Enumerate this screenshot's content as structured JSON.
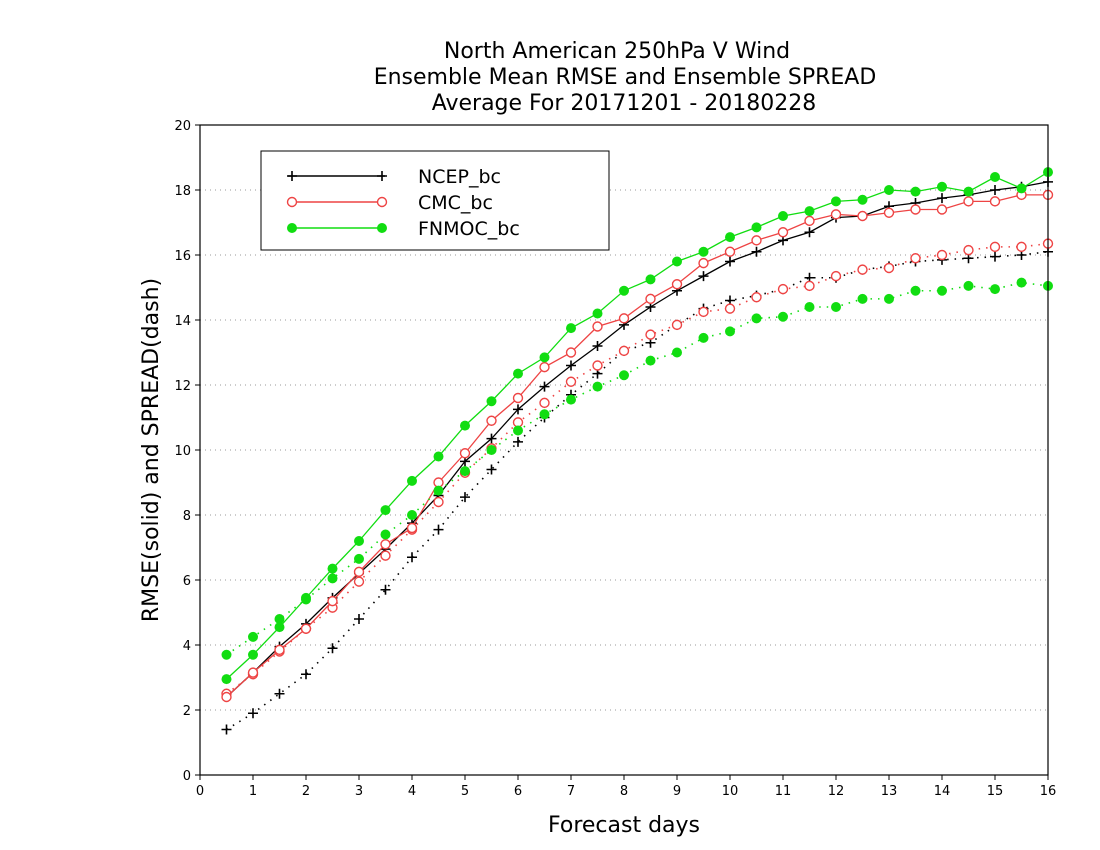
{
  "chart_data": {
    "type": "line",
    "title_lines": [
      "North American 250hPa V Wind",
      "Ensemble Mean RMSE and Ensemble SPREAD",
      "Average For 20171201 - 20180228"
    ],
    "xlabel": "Forecast days",
    "ylabel": "RMSE(solid) and SPREAD(dash)",
    "xlim": [
      0,
      16
    ],
    "ylim": [
      0,
      20
    ],
    "xticks": [
      0,
      1,
      2,
      3,
      4,
      5,
      6,
      7,
      8,
      9,
      10,
      11,
      12,
      13,
      14,
      15,
      16
    ],
    "yticks": [
      0,
      2,
      4,
      6,
      8,
      10,
      12,
      14,
      16,
      18,
      20
    ],
    "grid": "horizontal-dotted",
    "legend_position": "top-left",
    "x": [
      0.5,
      1,
      1.5,
      2,
      2.5,
      3,
      3.5,
      4,
      4.5,
      5,
      5.5,
      6,
      6.5,
      7,
      7.5,
      8,
      8.5,
      9,
      9.5,
      10,
      10.5,
      11,
      11.5,
      12,
      12.5,
      13,
      13.5,
      14,
      14.5,
      15,
      15.5,
      16
    ],
    "series": [
      {
        "name": "NCEP_bc",
        "color": "#000000",
        "marker": "plus",
        "rmse": [
          2.4,
          3.15,
          3.95,
          4.65,
          5.45,
          6.2,
          6.95,
          7.75,
          8.6,
          9.65,
          10.35,
          11.25,
          11.95,
          12.6,
          13.2,
          13.85,
          14.4,
          14.9,
          15.35,
          15.8,
          16.1,
          16.45,
          16.7,
          17.15,
          17.2,
          17.5,
          17.6,
          17.75,
          17.85,
          18.0,
          18.1,
          18.25
        ],
        "spread": [
          1.4,
          1.9,
          2.5,
          3.1,
          3.9,
          4.8,
          5.7,
          6.7,
          7.55,
          8.55,
          9.4,
          10.25,
          11.0,
          11.7,
          12.35,
          13.05,
          13.3,
          13.85,
          14.35,
          14.6,
          14.75,
          14.95,
          15.3,
          15.3,
          15.55,
          15.65,
          15.8,
          15.85,
          15.9,
          15.95,
          16.0,
          16.1
        ]
      },
      {
        "name": "CMC_bc",
        "color": "#ee4444",
        "marker": "open-circle",
        "rmse": [
          2.4,
          3.15,
          3.85,
          4.5,
          5.35,
          6.25,
          7.1,
          7.6,
          9.0,
          9.9,
          10.9,
          11.6,
          12.55,
          13.0,
          13.8,
          14.05,
          14.65,
          15.1,
          15.75,
          16.1,
          16.45,
          16.7,
          17.05,
          17.25,
          17.2,
          17.3,
          17.4,
          17.4,
          17.65,
          17.65,
          17.85,
          17.85
        ],
        "spread": [
          2.5,
          3.1,
          3.8,
          4.5,
          5.15,
          5.95,
          6.75,
          7.55,
          8.4,
          9.3,
          10.05,
          10.85,
          11.45,
          12.1,
          12.6,
          13.05,
          13.55,
          13.85,
          14.25,
          14.35,
          14.7,
          14.95,
          15.05,
          15.35,
          15.55,
          15.6,
          15.9,
          16.0,
          16.15,
          16.25,
          16.25,
          16.35
        ]
      },
      {
        "name": "FNMOC_bc",
        "color": "#11dd11",
        "marker": "filled-circle",
        "rmse": [
          2.95,
          3.7,
          4.55,
          5.45,
          6.35,
          7.2,
          8.15,
          9.05,
          9.8,
          10.75,
          11.5,
          12.35,
          12.85,
          13.75,
          14.2,
          14.9,
          15.25,
          15.8,
          16.1,
          16.55,
          16.85,
          17.2,
          17.35,
          17.65,
          17.7,
          18.0,
          17.95,
          18.1,
          17.95,
          18.4,
          18.05,
          18.55
        ],
        "spread": [
          3.7,
          4.25,
          4.8,
          5.4,
          6.05,
          6.65,
          7.4,
          8.0,
          8.75,
          9.35,
          10.0,
          10.6,
          11.1,
          11.55,
          11.95,
          12.3,
          12.75,
          13.0,
          13.45,
          13.65,
          14.05,
          14.1,
          14.4,
          14.4,
          14.65,
          14.65,
          14.9,
          14.9,
          15.05,
          14.95,
          15.15,
          15.05
        ]
      }
    ]
  }
}
